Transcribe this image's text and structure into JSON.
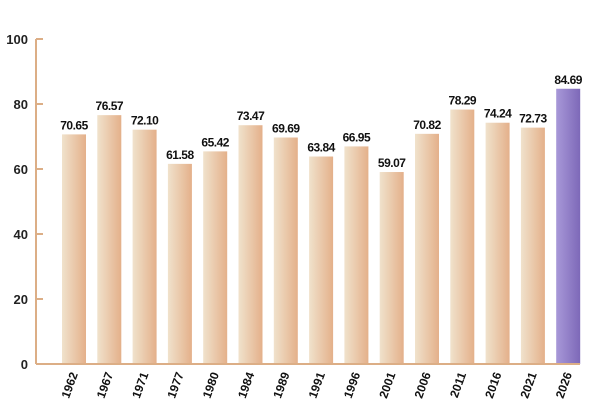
{
  "chart_data": {
    "type": "bar",
    "title": "",
    "xlabel": "",
    "ylabel": "",
    "ylim": [
      0,
      100
    ],
    "yticks": [
      0,
      20,
      40,
      60,
      80,
      100
    ],
    "grid": false,
    "categories": [
      "1962",
      "1967",
      "1971",
      "1977",
      "1980",
      "1984",
      "1989",
      "1991",
      "1996",
      "2001",
      "2006",
      "2011",
      "2016",
      "2021",
      "2026"
    ],
    "values": [
      70.65,
      76.57,
      72.1,
      61.58,
      65.42,
      73.47,
      69.69,
      63.84,
      66.95,
      59.07,
      70.82,
      78.29,
      74.24,
      72.73,
      84.69
    ],
    "labels": [
      "70.65",
      "76.57",
      "72.10",
      "61.58",
      "65.42",
      "73.47",
      "69.69",
      "63.84",
      "66.95",
      "59.07",
      "70.82",
      "78.29",
      "74.24",
      "72.73",
      "84.69"
    ],
    "highlight_index": 14,
    "colors": {
      "bar_light": "#f0e2cc",
      "bar_dark": "#e4b08a",
      "highlight_light": "#a898d8",
      "highlight_dark": "#7d68b8",
      "highlight_label": "#e02020",
      "axis": "#dcae86"
    }
  }
}
